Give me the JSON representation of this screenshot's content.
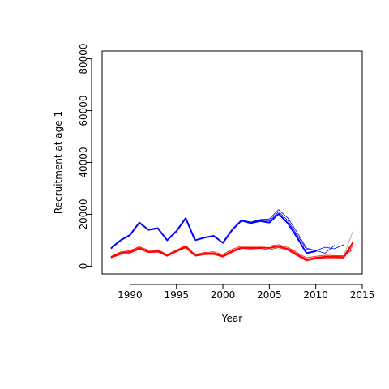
{
  "chart_data": {
    "type": "line",
    "xlabel": "Year",
    "ylabel": "Recruitment at age 1",
    "xlim": [
      1987,
      2015
    ],
    "ylim": [
      -3000,
      83000
    ],
    "x_ticks": [
      1990,
      1995,
      2000,
      2005,
      2010,
      2015
    ],
    "y_ticks": [
      0,
      20000,
      40000,
      60000,
      80000
    ],
    "x_tick_labels": [
      "1990",
      "1995",
      "2000",
      "2005",
      "2010",
      "2015"
    ],
    "y_tick_labels": [
      "0",
      "20000",
      "40000",
      "60000",
      "80000"
    ],
    "grid": false,
    "series": [
      {
        "color": "#0000ff",
        "width": 0.8,
        "x": [
          1988,
          1989,
          1990,
          1991,
          1992,
          1993,
          1994,
          1995,
          1996,
          1997,
          1998,
          1999,
          2000,
          2001,
          2002,
          2003,
          2004,
          2005,
          2006,
          2007,
          2008,
          2009,
          2010,
          2011,
          2012,
          2013
        ],
        "y": [
          7000,
          10000,
          12000,
          16500,
          14300,
          14800,
          10000,
          13500,
          18500,
          10000,
          11000,
          11800,
          9000,
          14000,
          17800,
          17000,
          18000,
          18200,
          21800,
          18500,
          13000,
          7000,
          6000,
          7300,
          6700,
          8300
        ]
      },
      {
        "color": "#0000ff",
        "width": 0.8,
        "x": [
          1988,
          1989,
          1990,
          1991,
          1992,
          1993,
          1994,
          1995,
          1996,
          1997,
          1998,
          1999,
          2000,
          2001,
          2002,
          2003,
          2004,
          2005,
          2006,
          2007,
          2008,
          2009,
          2010,
          2011,
          2012
        ],
        "y": [
          7000,
          10000,
          12000,
          16700,
          14000,
          14600,
          10000,
          13500,
          18400,
          10000,
          11000,
          11700,
          9000,
          14000,
          17700,
          16800,
          17800,
          17500,
          21000,
          17500,
          12000,
          6500,
          6000,
          5000,
          8000
        ]
      },
      {
        "color": "#0000ff",
        "width": 2,
        "x": [
          1988,
          1989,
          1990,
          1991,
          1992,
          1993,
          1994,
          1995,
          1996,
          1997,
          1998,
          1999,
          2000,
          2001,
          2002,
          2003,
          2004,
          2005,
          2006,
          2007,
          2008,
          2009,
          2010
        ],
        "y": [
          7000,
          10000,
          12000,
          16800,
          14000,
          14600,
          10000,
          13500,
          18500,
          10000,
          11000,
          11700,
          9000,
          14000,
          17600,
          16600,
          17400,
          16800,
          20200,
          16500,
          11000,
          5000,
          5800
        ]
      },
      {
        "color": "#ff0000",
        "width": 0.8,
        "x": [
          1988,
          1989,
          1990,
          1991,
          1992,
          1993,
          1994,
          1995,
          1996,
          1997,
          1998,
          1999,
          2000,
          2001,
          2002,
          2003,
          2004,
          2005,
          2006,
          2007,
          2008,
          2009,
          2010,
          2011,
          2012,
          2013,
          2014
        ],
        "y": [
          3800,
          5500,
          6000,
          7500,
          6200,
          6300,
          4500,
          6200,
          8000,
          4500,
          5300,
          5500,
          4500,
          6500,
          7800,
          7600,
          7800,
          7800,
          8300,
          7200,
          5200,
          3200,
          3800,
          4200,
          4100,
          4000,
          6500
        ]
      },
      {
        "color": "#ff0000",
        "width": 0.8,
        "x": [
          1988,
          1989,
          1990,
          1991,
          1992,
          1993,
          1994,
          1995,
          1996,
          1997,
          1998,
          1999,
          2000,
          2001,
          2002,
          2003,
          2004,
          2005,
          2006,
          2007,
          2008,
          2009,
          2010,
          2011,
          2012,
          2013,
          2014
        ],
        "y": [
          3200,
          4500,
          5000,
          6500,
          5200,
          5400,
          3800,
          5500,
          7100,
          3800,
          4400,
          4500,
          3500,
          5300,
          6800,
          6600,
          6800,
          6300,
          7200,
          6100,
          4000,
          2000,
          2800,
          3200,
          3200,
          3100,
          8000
        ]
      },
      {
        "color": "#999999",
        "width": 0.8,
        "x": [
          2013,
          2014
        ],
        "y": [
          4000,
          13500
        ]
      },
      {
        "color": "#ff0000",
        "width": 2,
        "x": [
          1988,
          1989,
          1990,
          1991,
          1992,
          1993,
          1994,
          1995,
          1996,
          1997,
          1998,
          1999,
          2000,
          2001,
          2002,
          2003,
          2004,
          2005,
          2006,
          2007,
          2008,
          2009,
          2010,
          2011,
          2012,
          2013,
          2014
        ],
        "y": [
          3500,
          5000,
          5500,
          7000,
          5600,
          5800,
          4100,
          5800,
          7500,
          4100,
          4800,
          4900,
          3900,
          5800,
          7200,
          7000,
          7200,
          7000,
          7700,
          6600,
          4500,
          2500,
          3200,
          3600,
          3600,
          3500,
          9200
        ]
      }
    ]
  }
}
